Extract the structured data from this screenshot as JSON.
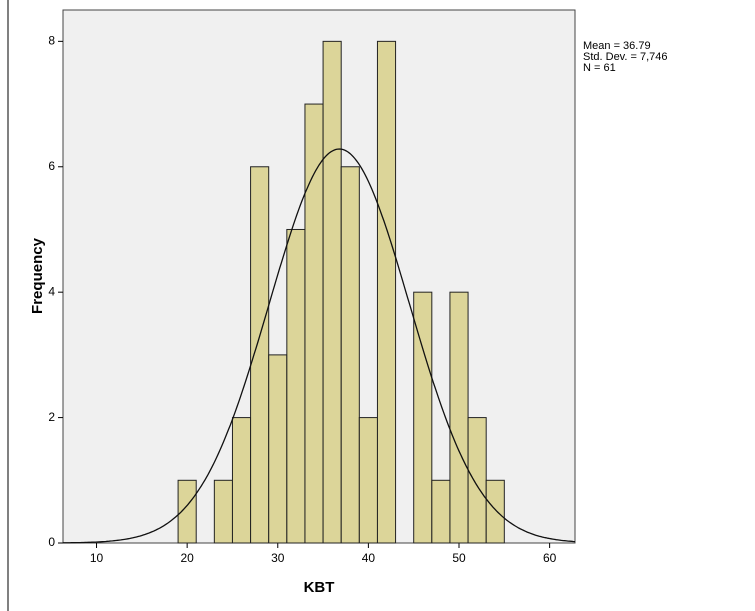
{
  "chart_data": {
    "type": "histogram",
    "xlabel": "KBT",
    "ylabel": "Frequency",
    "bins": [
      19,
      21,
      23,
      25,
      27,
      29,
      31,
      33,
      35,
      37,
      39,
      41,
      43,
      45,
      47,
      49,
      51,
      53,
      55
    ],
    "values": [
      1,
      0,
      1,
      2,
      6,
      3,
      5,
      7,
      8,
      6,
      2,
      8,
      0,
      4,
      1,
      4,
      2,
      1
    ],
    "color": "#d8d08a",
    "edge_color": "#222222",
    "xlim": [
      6.3,
      62.8
    ],
    "ylim": [
      0,
      8.5
    ],
    "xticks": [
      10,
      20,
      30,
      40,
      50,
      60
    ],
    "yticks": [
      0,
      2,
      4,
      6,
      8
    ],
    "stats": {
      "mean": 36.79,
      "sd": 7.746,
      "n": 61
    },
    "stats_labels": [
      "Mean = 36.79",
      "Std. Dev. = 7,746",
      "N = 61"
    ]
  }
}
